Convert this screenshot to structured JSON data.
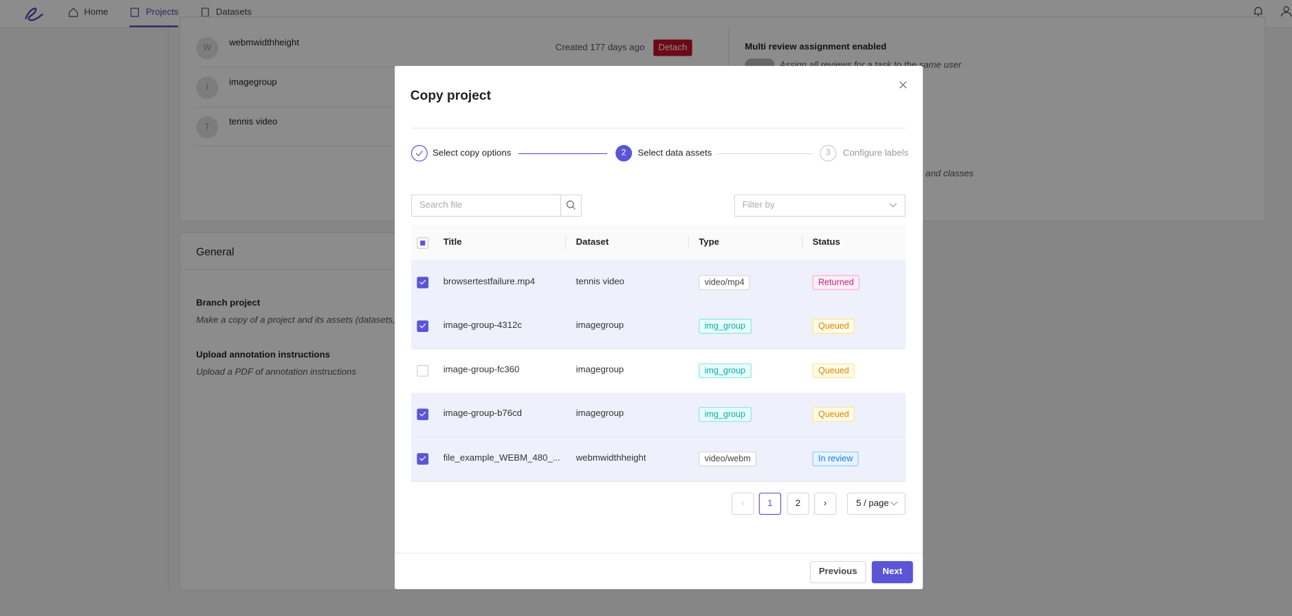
{
  "nav": {
    "items": [
      "Home",
      "Projects",
      "Datasets"
    ]
  },
  "background": {
    "members": [
      {
        "initial": "W",
        "name": "webmwidthheight"
      },
      {
        "initial": "I",
        "name": "imagegroup"
      },
      {
        "initial": "T",
        "name": "tennis video"
      }
    ],
    "created": "Created 177 days ago",
    "detach": "Detach",
    "multi_review_title": "Multi review assignment enabled",
    "multi_review_desc": "Assign all reviews for a task to the same user",
    "partial_text": "ors and classes",
    "general": {
      "title": "General",
      "items": [
        {
          "title": "Branch project",
          "desc": "Make a copy of a project and its assets (datasets, n"
        },
        {
          "title": "Upload annotation instructions",
          "desc": "Upload a PDF of annotation instructions"
        }
      ]
    }
  },
  "modal": {
    "title": "Copy project",
    "steps": [
      {
        "label": "Select copy options"
      },
      {
        "number": "2",
        "label": "Select data assets"
      },
      {
        "number": "3",
        "label": "Configure labels"
      }
    ],
    "search_placeholder": "Search file",
    "filter_placeholder": "Filter by",
    "table": {
      "columns": [
        "Title",
        "Dataset",
        "Type",
        "Status"
      ],
      "rows": [
        {
          "checked": true,
          "title": "browsertestfailure.mp4",
          "dataset": "tennis video",
          "type": "video/mp4",
          "status": "Returned"
        },
        {
          "checked": true,
          "title": "image-group-4312c",
          "dataset": "imagegroup",
          "type": "img_group",
          "status": "Queued"
        },
        {
          "checked": false,
          "title": "image-group-fc360",
          "dataset": "imagegroup",
          "type": "img_group",
          "status": "Queued"
        },
        {
          "checked": true,
          "title": "image-group-b76cd",
          "dataset": "imagegroup",
          "type": "img_group",
          "status": "Queued"
        },
        {
          "checked": true,
          "title": "file_example_WEBM_480_...",
          "dataset": "webmwidthheight",
          "type": "video/webm",
          "status": "In review"
        }
      ]
    },
    "pagination": {
      "pages": [
        "1",
        "2"
      ],
      "page_size": "5 / page"
    },
    "buttons": {
      "previous": "Previous",
      "next": "Next"
    }
  }
}
